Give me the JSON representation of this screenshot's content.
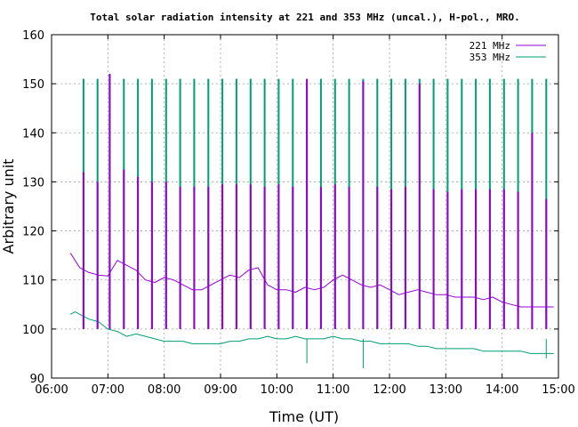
{
  "chart_data": {
    "type": "line",
    "title": "Total solar radiation intensity at 221 and 353 MHz (uncal.), H-pol., MRO.",
    "xlabel": "Time (UT)",
    "ylabel": "Arbitrary unit",
    "xlim": [
      "06:00",
      "15:00"
    ],
    "ylim": [
      90,
      160
    ],
    "xticks": [
      "06:00",
      "07:00",
      "08:00",
      "09:00",
      "10:00",
      "11:00",
      "12:00",
      "13:00",
      "14:00",
      "15:00"
    ],
    "yticks": [
      90,
      100,
      110,
      120,
      130,
      140,
      150,
      160
    ],
    "grid": true,
    "legend_position": "top-right",
    "series": [
      {
        "name": "221 MHz",
        "color": "#9400d3",
        "baseline": [
          [
            "06:20",
            115.5
          ],
          [
            "06:25",
            114.0
          ],
          [
            "06:30",
            112.5
          ],
          [
            "06:40",
            111.5
          ],
          [
            "06:50",
            111.0
          ],
          [
            "07:00",
            110.8
          ],
          [
            "07:10",
            114.0
          ],
          [
            "07:20",
            113.0
          ],
          [
            "07:30",
            112.0
          ],
          [
            "07:40",
            110.0
          ],
          [
            "07:50",
            109.5
          ],
          [
            "08:00",
            110.5
          ],
          [
            "08:10",
            110.0
          ],
          [
            "08:20",
            109.0
          ],
          [
            "08:30",
            108.0
          ],
          [
            "08:40",
            108.0
          ],
          [
            "08:50",
            109.0
          ],
          [
            "09:00",
            110.0
          ],
          [
            "09:10",
            111.0
          ],
          [
            "09:20",
            110.5
          ],
          [
            "09:30",
            112.0
          ],
          [
            "09:40",
            112.5
          ],
          [
            "09:50",
            109.0
          ],
          [
            "10:00",
            108.0
          ],
          [
            "10:10",
            108.0
          ],
          [
            "10:20",
            107.5
          ],
          [
            "10:30",
            108.5
          ],
          [
            "10:40",
            108.0
          ],
          [
            "10:50",
            108.5
          ],
          [
            "11:00",
            110.0
          ],
          [
            "11:10",
            111.0
          ],
          [
            "11:20",
            110.0
          ],
          [
            "11:30",
            109.0
          ],
          [
            "11:40",
            108.5
          ],
          [
            "11:50",
            109.0
          ],
          [
            "12:00",
            108.0
          ],
          [
            "12:10",
            107.0
          ],
          [
            "12:20",
            107.5
          ],
          [
            "12:30",
            108.0
          ],
          [
            "12:40",
            107.5
          ],
          [
            "12:50",
            107.0
          ],
          [
            "13:00",
            107.0
          ],
          [
            "13:10",
            106.5
          ],
          [
            "13:20",
            106.5
          ],
          [
            "13:30",
            106.5
          ],
          [
            "13:40",
            106.0
          ],
          [
            "13:50",
            106.5
          ],
          [
            "14:00",
            105.5
          ],
          [
            "14:10",
            105.0
          ],
          [
            "14:20",
            104.5
          ],
          [
            "14:30",
            104.5
          ],
          [
            "14:40",
            104.5
          ],
          [
            "14:50",
            104.5
          ],
          [
            "14:55",
            104.5
          ]
        ],
        "spikes": [
          [
            "06:34",
            132
          ],
          [
            "06:49",
            130
          ],
          [
            "07:02",
            152
          ],
          [
            "07:17",
            132.5
          ],
          [
            "07:32",
            131
          ],
          [
            "07:47",
            130
          ],
          [
            "08:02",
            130
          ],
          [
            "08:17",
            129
          ],
          [
            "08:32",
            129
          ],
          [
            "08:47",
            129
          ],
          [
            "09:02",
            129.5
          ],
          [
            "09:17",
            129.5
          ],
          [
            "09:32",
            129.5
          ],
          [
            "09:47",
            129
          ],
          [
            "10:02",
            129.5
          ],
          [
            "10:17",
            129
          ],
          [
            "10:32",
            151
          ],
          [
            "10:47",
            129
          ],
          [
            "11:02",
            129.5
          ],
          [
            "11:17",
            129
          ],
          [
            "11:32",
            150.5
          ],
          [
            "11:47",
            129
          ],
          [
            "12:02",
            128.5
          ],
          [
            "12:17",
            129
          ],
          [
            "12:32",
            150
          ],
          [
            "12:47",
            128.5
          ],
          [
            "13:02",
            128
          ],
          [
            "13:17",
            128.5
          ],
          [
            "13:32",
            128.5
          ],
          [
            "13:47",
            128.5
          ],
          [
            "14:02",
            128.5
          ],
          [
            "14:17",
            128
          ],
          [
            "14:32",
            140
          ],
          [
            "14:47",
            126.5
          ]
        ]
      },
      {
        "name": "353 MHz",
        "color": "#009e73",
        "baseline": [
          [
            "06:20",
            103.0
          ],
          [
            "06:25",
            103.5
          ],
          [
            "06:30",
            103.0
          ],
          [
            "06:40",
            102.0
          ],
          [
            "06:50",
            101.5
          ],
          [
            "07:00",
            100.0
          ],
          [
            "07:10",
            99.5
          ],
          [
            "07:20",
            98.5
          ],
          [
            "07:30",
            99.0
          ],
          [
            "07:40",
            98.5
          ],
          [
            "07:50",
            98.0
          ],
          [
            "08:00",
            97.5
          ],
          [
            "08:10",
            97.5
          ],
          [
            "08:20",
            97.5
          ],
          [
            "08:30",
            97.0
          ],
          [
            "08:40",
            97.0
          ],
          [
            "08:50",
            97.0
          ],
          [
            "09:00",
            97.0
          ],
          [
            "09:10",
            97.5
          ],
          [
            "09:20",
            97.5
          ],
          [
            "09:30",
            98.0
          ],
          [
            "09:40",
            98.0
          ],
          [
            "09:50",
            98.5
          ],
          [
            "10:00",
            98.0
          ],
          [
            "10:10",
            98.0
          ],
          [
            "10:20",
            98.5
          ],
          [
            "10:30",
            98.0
          ],
          [
            "10:40",
            98.0
          ],
          [
            "10:50",
            98.0
          ],
          [
            "11:00",
            98.5
          ],
          [
            "11:10",
            98.0
          ],
          [
            "11:20",
            98.0
          ],
          [
            "11:30",
            97.5
          ],
          [
            "11:40",
            97.5
          ],
          [
            "11:50",
            97.0
          ],
          [
            "12:00",
            97.0
          ],
          [
            "12:10",
            97.0
          ],
          [
            "12:20",
            97.0
          ],
          [
            "12:30",
            96.5
          ],
          [
            "12:40",
            96.5
          ],
          [
            "12:50",
            96.0
          ],
          [
            "13:00",
            96.0
          ],
          [
            "13:10",
            96.0
          ],
          [
            "13:20",
            96.0
          ],
          [
            "13:30",
            96.0
          ],
          [
            "13:40",
            95.5
          ],
          [
            "13:50",
            95.5
          ],
          [
            "14:00",
            95.5
          ],
          [
            "14:10",
            95.5
          ],
          [
            "14:20",
            95.5
          ],
          [
            "14:30",
            95.0
          ],
          [
            "14:40",
            95.0
          ],
          [
            "14:50",
            95.0
          ],
          [
            "14:55",
            95.0
          ]
        ],
        "dips": [
          [
            "10:32",
            93
          ],
          [
            "11:32",
            92
          ],
          [
            "14:47",
            94
          ]
        ],
        "spikes": [
          [
            "06:34",
            151
          ],
          [
            "06:49",
            151
          ],
          [
            "07:02",
            152
          ],
          [
            "07:17",
            151
          ],
          [
            "07:32",
            151
          ],
          [
            "07:47",
            151
          ],
          [
            "08:02",
            151
          ],
          [
            "08:17",
            151
          ],
          [
            "08:32",
            151
          ],
          [
            "08:47",
            151
          ],
          [
            "09:02",
            151
          ],
          [
            "09:17",
            151
          ],
          [
            "09:32",
            151
          ],
          [
            "09:47",
            151
          ],
          [
            "10:02",
            151
          ],
          [
            "10:17",
            151
          ],
          [
            "10:32",
            150
          ],
          [
            "10:47",
            151
          ],
          [
            "11:02",
            151
          ],
          [
            "11:17",
            151
          ],
          [
            "11:32",
            151
          ],
          [
            "11:47",
            151
          ],
          [
            "12:02",
            151
          ],
          [
            "12:17",
            151
          ],
          [
            "12:32",
            151
          ],
          [
            "12:47",
            151
          ],
          [
            "13:02",
            151
          ],
          [
            "13:17",
            151
          ],
          [
            "13:32",
            151
          ],
          [
            "13:47",
            151
          ],
          [
            "14:02",
            151
          ],
          [
            "14:17",
            151
          ],
          [
            "14:32",
            151
          ],
          [
            "14:47",
            151
          ]
        ]
      }
    ]
  }
}
